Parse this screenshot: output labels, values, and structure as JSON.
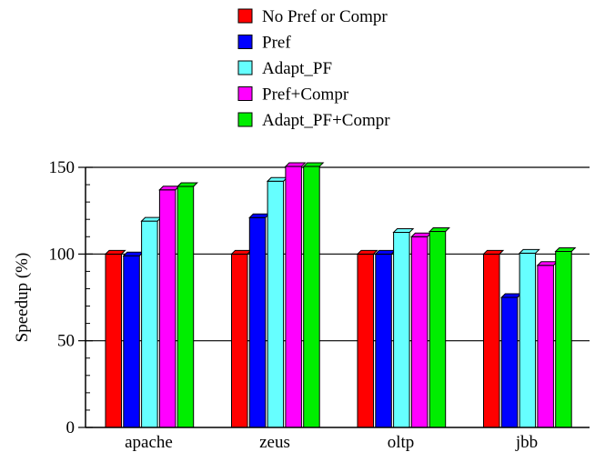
{
  "chart_data": {
    "type": "bar",
    "categories": [
      "apache",
      "zeus",
      "oltp",
      "jbb"
    ],
    "series": [
      {
        "name": "No Pref or Compr",
        "color": "#ff0000",
        "values": [
          100,
          100,
          100,
          100
        ]
      },
      {
        "name": "Pref",
        "color": "#0000ff",
        "values": [
          99,
          121,
          100,
          75
        ]
      },
      {
        "name": "Adapt_PF",
        "color": "#66ffff",
        "values": [
          119,
          142,
          112.5,
          100.5
        ]
      },
      {
        "name": "Pref+Compr",
        "color": "#ff00ff",
        "values": [
          137,
          150.5,
          110,
          93.5
        ]
      },
      {
        "name": "Adapt_PF+Compr",
        "color": "#00ee00",
        "values": [
          139,
          150.5,
          113,
          101.5
        ]
      }
    ],
    "xlabel": "",
    "ylabel": "Speedup (%)",
    "ylim": [
      0,
      150
    ],
    "yticks": [
      0,
      50,
      100,
      150
    ],
    "grid": true,
    "legend": "top"
  }
}
